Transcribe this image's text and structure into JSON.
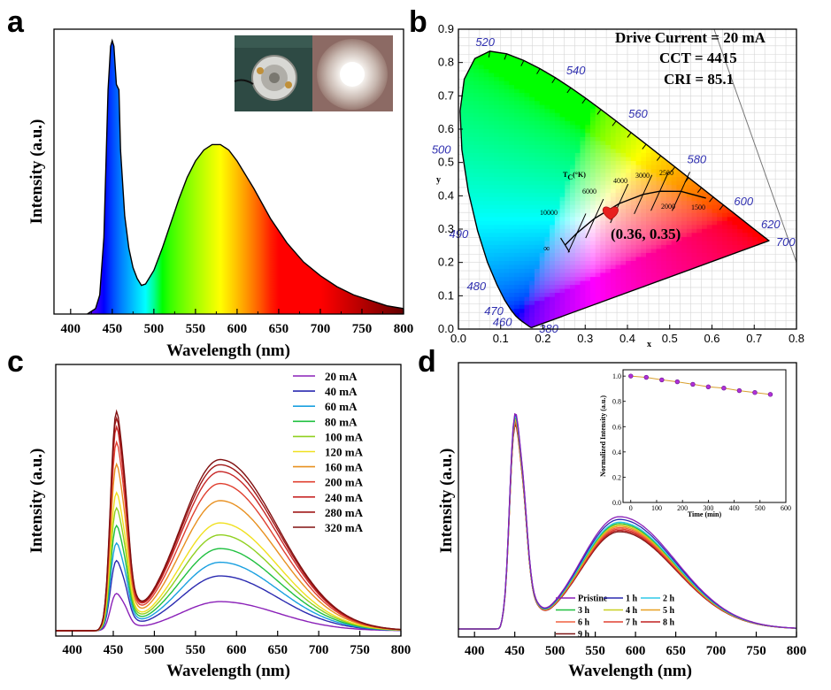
{
  "panels": {
    "a": {
      "label": "a"
    },
    "b": {
      "label": "b"
    },
    "c": {
      "label": "c"
    },
    "d": {
      "label": "d"
    }
  },
  "chart_data": [
    {
      "panel": "a",
      "type": "area",
      "xlabel": "Wavelength (nm)",
      "ylabel": "Intensity (a.u.)",
      "xlim": [
        380,
        800
      ],
      "xticks": [
        400,
        450,
        500,
        550,
        600,
        650,
        700,
        750,
        800
      ],
      "fill": "visible spectrum gradient under curve",
      "inset": "photographs of the LED device (off and lit)",
      "series": [
        {
          "x": [
            420,
            430,
            435,
            440,
            445,
            448,
            450,
            452,
            455,
            458,
            460,
            465,
            470,
            475,
            480,
            485,
            490,
            500,
            510,
            520,
            530,
            540,
            550,
            560,
            570,
            580,
            590,
            600,
            620,
            640,
            660,
            680,
            700,
            720,
            740,
            760,
            780,
            800
          ],
          "y": [
            0,
            0.02,
            0.07,
            0.28,
            0.82,
            0.98,
            1.0,
            0.98,
            0.84,
            0.82,
            0.6,
            0.36,
            0.24,
            0.17,
            0.13,
            0.105,
            0.11,
            0.16,
            0.24,
            0.33,
            0.42,
            0.5,
            0.56,
            0.6,
            0.62,
            0.62,
            0.6,
            0.56,
            0.46,
            0.35,
            0.26,
            0.19,
            0.14,
            0.1,
            0.07,
            0.05,
            0.03,
            0.02
          ]
        }
      ]
    },
    {
      "panel": "b",
      "type": "scatter",
      "xlabel": "x",
      "ylabel": "y",
      "xlim": [
        0.0,
        0.8
      ],
      "ylim": [
        0.0,
        0.9
      ],
      "xticks": [
        "0.0",
        "0.1",
        "0.2",
        "0.3",
        "0.4",
        "0.5",
        "0.6",
        "0.7",
        "0.8"
      ],
      "yticks": [
        "0.0",
        "0.1",
        "0.2",
        "0.3",
        "0.4",
        "0.5",
        "0.6",
        "0.7",
        "0.8",
        "0.9"
      ],
      "annotations": [
        "Drive Current = 20 mA",
        "CCT = 4415",
        "CRI = 85.1"
      ],
      "point_label": "(0.36, 0.35)",
      "point": {
        "x": 0.36,
        "y": 0.35
      },
      "planckian_label": "T",
      "planckian_label_sub": "C",
      "planckian_label_unit": "(°K)",
      "cct_labels": [
        "10000",
        "6000",
        "4000",
        "3000",
        "2500",
        "2000",
        "1500",
        "∞"
      ],
      "wavelength_labels": [
        {
          "text": "380",
          "x": 0.1741,
          "y": 0.005
        },
        {
          "text": "460",
          "x": 0.144,
          "y": 0.03
        },
        {
          "text": "470",
          "x": 0.124,
          "y": 0.058
        },
        {
          "text": "480",
          "x": 0.091,
          "y": 0.133
        },
        {
          "text": "490",
          "x": 0.045,
          "y": 0.295
        },
        {
          "text": "500",
          "x": 0.008,
          "y": 0.538
        },
        {
          "text": "520",
          "x": 0.074,
          "y": 0.834
        },
        {
          "text": "540",
          "x": 0.23,
          "y": 0.754
        },
        {
          "text": "560",
          "x": 0.373,
          "y": 0.624
        },
        {
          "text": "580",
          "x": 0.512,
          "y": 0.487
        },
        {
          "text": "600",
          "x": 0.627,
          "y": 0.372
        },
        {
          "text": "620",
          "x": 0.691,
          "y": 0.308
        },
        {
          "text": "700",
          "x": 0.735,
          "y": 0.265
        }
      ]
    },
    {
      "panel": "c",
      "type": "line",
      "xlabel": "Wavelength (nm)",
      "ylabel": "Intensity (a.u.)",
      "xlim": [
        380,
        800
      ],
      "xticks": [
        400,
        450,
        500,
        550,
        600,
        650,
        700,
        750,
        800
      ],
      "legend_position": "top-right",
      "series": [
        {
          "name": "20 mA",
          "color": "#8a20b8",
          "scale": 0.17
        },
        {
          "name": "40 mA",
          "color": "#2a2ab0",
          "scale": 0.32
        },
        {
          "name": "60 mA",
          "color": "#1aa0e0",
          "scale": 0.4
        },
        {
          "name": "80 mA",
          "color": "#20c040",
          "scale": 0.48
        },
        {
          "name": "100 mA",
          "color": "#90d020",
          "scale": 0.56
        },
        {
          "name": "120 mA",
          "color": "#f0e020",
          "scale": 0.63
        },
        {
          "name": "160 mA",
          "color": "#e89020",
          "scale": 0.76
        },
        {
          "name": "200 mA",
          "color": "#e04030",
          "scale": 0.86
        },
        {
          "name": "240 mA",
          "color": "#c82828",
          "scale": 0.93
        },
        {
          "name": "280 mA",
          "color": "#a01818",
          "scale": 0.97
        },
        {
          "name": "320 mA",
          "color": "#801010",
          "scale": 1.0
        }
      ]
    },
    {
      "panel": "d",
      "type": "line",
      "xlabel": "Wavelength (nm)",
      "ylabel": "Intensity (a.u.)",
      "xlim": [
        380,
        800
      ],
      "xticks": [
        400,
        450,
        500,
        550,
        600,
        650,
        700,
        750,
        800
      ],
      "legend_position": "bottom-center",
      "series": [
        {
          "name": "Pristine",
          "color": "#8a20b8",
          "peak2": 0.41
        },
        {
          "name": "1 h",
          "color": "#2a2ab0",
          "peak2": 0.4
        },
        {
          "name": "2 h",
          "color": "#30c8e8",
          "peak2": 0.39
        },
        {
          "name": "3 h",
          "color": "#20c040",
          "peak2": 0.385
        },
        {
          "name": "4 h",
          "color": "#c8d020",
          "peak2": 0.38
        },
        {
          "name": "5 h",
          "color": "#e8a020",
          "peak2": 0.375
        },
        {
          "name": "6 h",
          "color": "#f06040",
          "peak2": 0.37
        },
        {
          "name": "7 h",
          "color": "#e04030",
          "peak2": 0.365
        },
        {
          "name": "8 h",
          "color": "#c02020",
          "peak2": 0.36
        },
        {
          "name": "9 h",
          "color": "#801818",
          "peak2": 0.355
        }
      ],
      "inset": {
        "type": "line",
        "xlabel": "Time (min)",
        "ylabel": "Normalized Intensity (a.u.)",
        "xlim": [
          -30,
          600
        ],
        "ylim": [
          0.0,
          1.05
        ],
        "xticks": [
          0,
          100,
          200,
          300,
          400,
          500,
          600
        ],
        "yticks": [
          "0.0",
          "0.2",
          "0.4",
          "0.6",
          "0.8",
          "1.0"
        ],
        "x": [
          0,
          60,
          120,
          180,
          240,
          300,
          360,
          420,
          480,
          540
        ],
        "y": [
          1.0,
          0.99,
          0.97,
          0.955,
          0.935,
          0.915,
          0.905,
          0.885,
          0.87,
          0.855
        ]
      }
    }
  ]
}
